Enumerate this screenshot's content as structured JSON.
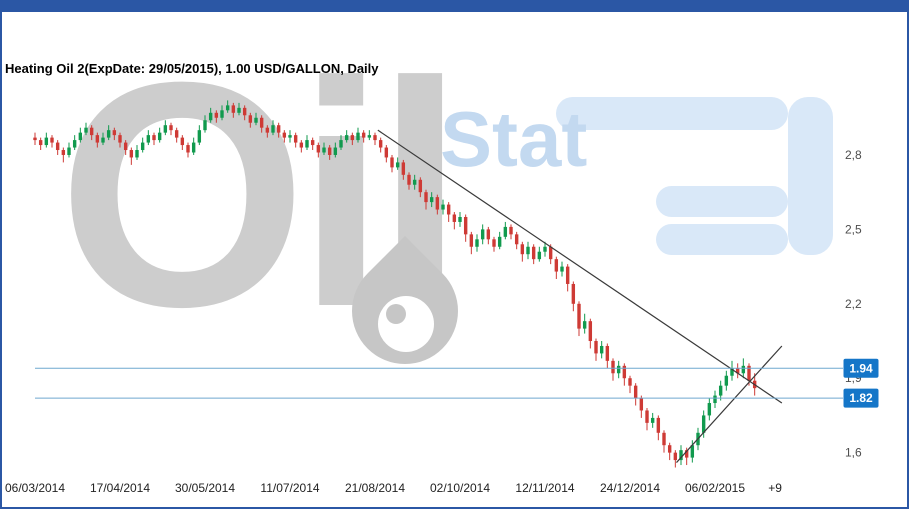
{
  "window": {
    "accent_color": "#2b57a5"
  },
  "header": {
    "title": "Heating Oil 2(ExpDate: 29/05/2015), 1.00 USD/GALLON, Daily"
  },
  "watermark": {
    "oil_text": "Oil",
    "stat_text": "Stat"
  },
  "chart_data": {
    "type": "candlestick",
    "title": "Heating Oil 2(ExpDate: 29/05/2015), 1.00 USD/GALLON, Daily",
    "symbol": "Heating Oil 2",
    "expiry": "29/05/2015",
    "unit": "1.00 USD/GALLON",
    "interval": "Daily",
    "y_domain": [
      1.53,
      3.07
    ],
    "y_ticks": [
      {
        "value": 2.8,
        "label": "2,8"
      },
      {
        "value": 2.5,
        "label": "2,5"
      },
      {
        "value": 2.2,
        "label": "2,2"
      },
      {
        "value": 1.9,
        "label": "1,9"
      },
      {
        "value": 1.6,
        "label": "1,6"
      }
    ],
    "x_ticks": [
      {
        "bar": 0,
        "label": "06/03/2014"
      },
      {
        "bar": 15,
        "label": "17/04/2014"
      },
      {
        "bar": 30,
        "label": "30/05/2014"
      },
      {
        "bar": 45,
        "label": "11/07/2014"
      },
      {
        "bar": 60,
        "label": "21/08/2014"
      },
      {
        "bar": 75,
        "label": "02/10/2014"
      },
      {
        "bar": 90,
        "label": "12/11/2014"
      },
      {
        "bar": 105,
        "label": "24/12/2014"
      },
      {
        "bar": 120,
        "label": "06/02/2015"
      }
    ],
    "offset_label": {
      "bar": 130.6,
      "label": "+9"
    },
    "levels": [
      {
        "value": 1.94,
        "label": "1.94"
      },
      {
        "value": 1.82,
        "label": "1.82"
      }
    ],
    "trend_lines": [
      {
        "x1_bar": 60.5,
        "p1": 2.9,
        "x2_bar": 131.8,
        "p2": 1.8
      },
      {
        "x1_bar": 113.2,
        "p1": 1.56,
        "x2_bar": 131.8,
        "p2": 2.03
      }
    ],
    "colors": {
      "up": "#119a4e",
      "down": "#ce3a35",
      "trend": "#3a3a3a",
      "level_line": "#6fa8cf",
      "level_badge": "#1576c8",
      "y_axis_text": "#4d4d4d",
      "x_axis_text": "#222222"
    },
    "candles": [
      [
        2.87,
        2.89,
        2.84,
        2.86
      ],
      [
        2.86,
        2.87,
        2.82,
        2.84
      ],
      [
        2.84,
        2.89,
        2.83,
        2.87
      ],
      [
        2.87,
        2.88,
        2.83,
        2.85
      ],
      [
        2.85,
        2.86,
        2.8,
        2.82
      ],
      [
        2.82,
        2.83,
        2.77,
        2.8
      ],
      [
        2.8,
        2.85,
        2.79,
        2.83
      ],
      [
        2.83,
        2.88,
        2.82,
        2.86
      ],
      [
        2.86,
        2.91,
        2.85,
        2.89
      ],
      [
        2.89,
        2.93,
        2.88,
        2.91
      ],
      [
        2.91,
        2.92,
        2.86,
        2.88
      ],
      [
        2.88,
        2.89,
        2.83,
        2.85
      ],
      [
        2.85,
        2.89,
        2.84,
        2.87
      ],
      [
        2.87,
        2.92,
        2.86,
        2.9
      ],
      [
        2.9,
        2.91,
        2.86,
        2.88
      ],
      [
        2.88,
        2.89,
        2.83,
        2.85
      ],
      [
        2.85,
        2.86,
        2.8,
        2.82
      ],
      [
        2.82,
        2.83,
        2.76,
        2.79
      ],
      [
        2.79,
        2.84,
        2.78,
        2.82
      ],
      [
        2.82,
        2.87,
        2.81,
        2.85
      ],
      [
        2.85,
        2.9,
        2.84,
        2.88
      ],
      [
        2.88,
        2.89,
        2.84,
        2.86
      ],
      [
        2.86,
        2.91,
        2.85,
        2.89
      ],
      [
        2.89,
        2.94,
        2.88,
        2.92
      ],
      [
        2.92,
        2.93,
        2.88,
        2.9
      ],
      [
        2.9,
        2.91,
        2.85,
        2.87
      ],
      [
        2.87,
        2.88,
        2.82,
        2.84
      ],
      [
        2.84,
        2.85,
        2.79,
        2.81
      ],
      [
        2.81,
        2.87,
        2.8,
        2.85
      ],
      [
        2.85,
        2.92,
        2.84,
        2.9
      ],
      [
        2.9,
        2.96,
        2.89,
        2.94
      ],
      [
        2.94,
        2.99,
        2.93,
        2.97
      ],
      [
        2.97,
        2.98,
        2.93,
        2.95
      ],
      [
        2.95,
        3.0,
        2.94,
        2.98
      ],
      [
        2.98,
        3.02,
        2.97,
        3.0
      ],
      [
        3.0,
        3.01,
        2.95,
        2.97
      ],
      [
        2.97,
        3.01,
        2.96,
        2.99
      ],
      [
        2.99,
        3.0,
        2.94,
        2.96
      ],
      [
        2.96,
        2.97,
        2.91,
        2.93
      ],
      [
        2.93,
        2.97,
        2.92,
        2.95
      ],
      [
        2.95,
        2.96,
        2.89,
        2.91
      ],
      [
        2.91,
        2.92,
        2.87,
        2.89
      ],
      [
        2.89,
        2.94,
        2.88,
        2.92
      ],
      [
        2.92,
        2.93,
        2.87,
        2.89
      ],
      [
        2.89,
        2.9,
        2.85,
        2.87
      ],
      [
        2.87,
        2.9,
        2.85,
        2.88
      ],
      [
        2.88,
        2.89,
        2.83,
        2.85
      ],
      [
        2.85,
        2.86,
        2.81,
        2.83
      ],
      [
        2.83,
        2.88,
        2.82,
        2.86
      ],
      [
        2.86,
        2.87,
        2.82,
        2.84
      ],
      [
        2.84,
        2.85,
        2.79,
        2.81
      ],
      [
        2.81,
        2.85,
        2.8,
        2.83
      ],
      [
        2.83,
        2.84,
        2.78,
        2.8
      ],
      [
        2.8,
        2.85,
        2.79,
        2.83
      ],
      [
        2.83,
        2.88,
        2.82,
        2.86
      ],
      [
        2.86,
        2.9,
        2.85,
        2.88
      ],
      [
        2.88,
        2.89,
        2.84,
        2.86
      ],
      [
        2.86,
        2.91,
        2.85,
        2.89
      ],
      [
        2.89,
        2.9,
        2.85,
        2.87
      ],
      [
        2.87,
        2.9,
        2.86,
        2.88
      ],
      [
        2.88,
        2.89,
        2.84,
        2.86
      ],
      [
        2.86,
        2.87,
        2.81,
        2.83
      ],
      [
        2.83,
        2.84,
        2.77,
        2.79
      ],
      [
        2.79,
        2.8,
        2.73,
        2.75
      ],
      [
        2.75,
        2.79,
        2.74,
        2.77
      ],
      [
        2.77,
        2.78,
        2.7,
        2.72
      ],
      [
        2.72,
        2.73,
        2.66,
        2.68
      ],
      [
        2.68,
        2.72,
        2.66,
        2.7
      ],
      [
        2.7,
        2.71,
        2.63,
        2.65
      ],
      [
        2.65,
        2.66,
        2.58,
        2.61
      ],
      [
        2.61,
        2.65,
        2.59,
        2.63
      ],
      [
        2.63,
        2.64,
        2.56,
        2.58
      ],
      [
        2.58,
        2.62,
        2.56,
        2.6
      ],
      [
        2.6,
        2.61,
        2.53,
        2.56
      ],
      [
        2.56,
        2.57,
        2.5,
        2.53
      ],
      [
        2.53,
        2.57,
        2.51,
        2.55
      ],
      [
        2.55,
        2.56,
        2.45,
        2.48
      ],
      [
        2.48,
        2.49,
        2.4,
        2.43
      ],
      [
        2.43,
        2.48,
        2.41,
        2.46
      ],
      [
        2.46,
        2.52,
        2.44,
        2.5
      ],
      [
        2.5,
        2.51,
        2.44,
        2.46
      ],
      [
        2.46,
        2.47,
        2.41,
        2.43
      ],
      [
        2.43,
        2.49,
        2.42,
        2.47
      ],
      [
        2.47,
        2.53,
        2.46,
        2.51
      ],
      [
        2.51,
        2.52,
        2.46,
        2.48
      ],
      [
        2.48,
        2.49,
        2.42,
        2.44
      ],
      [
        2.44,
        2.45,
        2.37,
        2.4
      ],
      [
        2.4,
        2.45,
        2.38,
        2.43
      ],
      [
        2.43,
        2.44,
        2.36,
        2.38
      ],
      [
        2.38,
        2.43,
        2.37,
        2.41
      ],
      [
        2.41,
        2.45,
        2.39,
        2.43
      ],
      [
        2.43,
        2.44,
        2.36,
        2.38
      ],
      [
        2.38,
        2.39,
        2.3,
        2.33
      ],
      [
        2.33,
        2.37,
        2.31,
        2.35
      ],
      [
        2.35,
        2.36,
        2.25,
        2.28
      ],
      [
        2.28,
        2.29,
        2.17,
        2.2
      ],
      [
        2.2,
        2.21,
        2.07,
        2.1
      ],
      [
        2.1,
        2.16,
        2.08,
        2.13
      ],
      [
        2.13,
        2.14,
        2.02,
        2.05
      ],
      [
        2.05,
        2.06,
        1.97,
        2.0
      ],
      [
        2.0,
        2.05,
        1.98,
        2.03
      ],
      [
        2.03,
        2.04,
        1.94,
        1.97
      ],
      [
        1.97,
        1.98,
        1.89,
        1.92
      ],
      [
        1.92,
        1.97,
        1.9,
        1.95
      ],
      [
        1.95,
        1.96,
        1.87,
        1.9
      ],
      [
        1.9,
        1.91,
        1.84,
        1.87
      ],
      [
        1.87,
        1.88,
        1.79,
        1.82
      ],
      [
        1.82,
        1.83,
        1.74,
        1.77
      ],
      [
        1.77,
        1.78,
        1.69,
        1.72
      ],
      [
        1.72,
        1.76,
        1.7,
        1.74
      ],
      [
        1.74,
        1.75,
        1.65,
        1.68
      ],
      [
        1.68,
        1.69,
        1.6,
        1.63
      ],
      [
        1.63,
        1.64,
        1.57,
        1.6
      ],
      [
        1.6,
        1.61,
        1.54,
        1.57
      ],
      [
        1.57,
        1.63,
        1.55,
        1.61
      ],
      [
        1.61,
        1.62,
        1.55,
        1.58
      ],
      [
        1.58,
        1.65,
        1.56,
        1.63
      ],
      [
        1.63,
        1.7,
        1.61,
        1.68
      ],
      [
        1.68,
        1.77,
        1.66,
        1.75
      ],
      [
        1.75,
        1.82,
        1.73,
        1.8
      ],
      [
        1.8,
        1.85,
        1.78,
        1.83
      ],
      [
        1.83,
        1.89,
        1.81,
        1.87
      ],
      [
        1.87,
        1.93,
        1.85,
        1.91
      ],
      [
        1.91,
        1.97,
        1.89,
        1.94
      ],
      [
        1.94,
        1.96,
        1.9,
        1.92
      ],
      [
        1.92,
        1.98,
        1.9,
        1.95
      ],
      [
        1.95,
        1.96,
        1.87,
        1.89
      ],
      [
        1.89,
        1.92,
        1.83,
        1.86
      ]
    ]
  }
}
